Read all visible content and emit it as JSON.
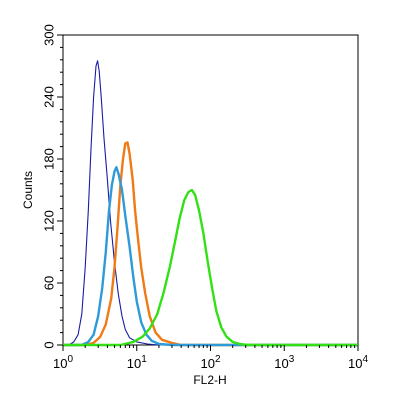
{
  "chart_data": {
    "type": "line",
    "x_scale": "log",
    "xlim": [
      1,
      10000
    ],
    "ylim": [
      0,
      300
    ],
    "xlabel": "FL2-H",
    "ylabel": "Counts",
    "y_ticks": [
      0,
      60,
      120,
      180,
      240,
      300
    ],
    "x_ticks": [
      {
        "base": "10",
        "exp": "0"
      },
      {
        "base": "10",
        "exp": "1"
      },
      {
        "base": "10",
        "exp": "2"
      },
      {
        "base": "10",
        "exp": "3"
      },
      {
        "base": "10",
        "exp": "4"
      }
    ],
    "grid": false,
    "series": [
      {
        "color": "#1a1aa6",
        "stroke": 1.1,
        "points": [
          [
            1.0,
            0
          ],
          [
            1.2,
            0
          ],
          [
            1.4,
            3
          ],
          [
            1.6,
            10
          ],
          [
            1.8,
            30
          ],
          [
            2.0,
            75
          ],
          [
            2.2,
            130
          ],
          [
            2.4,
            190
          ],
          [
            2.6,
            240
          ],
          [
            2.8,
            270
          ],
          [
            2.95,
            275
          ],
          [
            3.1,
            265
          ],
          [
            3.3,
            240
          ],
          [
            3.6,
            200
          ],
          [
            4.0,
            160
          ],
          [
            4.4,
            120
          ],
          [
            5.0,
            80
          ],
          [
            5.6,
            50
          ],
          [
            6.3,
            28
          ],
          [
            7.0,
            15
          ],
          [
            8.0,
            7
          ],
          [
            10,
            3
          ],
          [
            14,
            1
          ],
          [
            20,
            0
          ],
          [
            10000,
            0
          ]
        ]
      },
      {
        "color": "#ef7a16",
        "stroke": 2.4,
        "points": [
          [
            1.0,
            0
          ],
          [
            2.0,
            0
          ],
          [
            2.6,
            2
          ],
          [
            3.2,
            8
          ],
          [
            3.8,
            20
          ],
          [
            4.5,
            45
          ],
          [
            5.0,
            75
          ],
          [
            5.5,
            115
          ],
          [
            6.0,
            155
          ],
          [
            6.5,
            180
          ],
          [
            7.0,
            195
          ],
          [
            7.5,
            196
          ],
          [
            8.0,
            185
          ],
          [
            8.8,
            160
          ],
          [
            9.5,
            130
          ],
          [
            10.5,
            100
          ],
          [
            11.5,
            75
          ],
          [
            13,
            50
          ],
          [
            15,
            28
          ],
          [
            18,
            12
          ],
          [
            22,
            5
          ],
          [
            30,
            2
          ],
          [
            40,
            0
          ],
          [
            10000,
            0
          ]
        ]
      },
      {
        "color": "#2e9bd8",
        "stroke": 2.4,
        "points": [
          [
            1.0,
            0
          ],
          [
            1.8,
            0
          ],
          [
            2.2,
            3
          ],
          [
            2.6,
            10
          ],
          [
            3.0,
            28
          ],
          [
            3.4,
            55
          ],
          [
            3.8,
            90
          ],
          [
            4.2,
            130
          ],
          [
            4.6,
            155
          ],
          [
            5.0,
            168
          ],
          [
            5.3,
            172
          ],
          [
            5.7,
            165
          ],
          [
            6.3,
            150
          ],
          [
            7.0,
            125
          ],
          [
            8.0,
            95
          ],
          [
            9.0,
            65
          ],
          [
            10,
            42
          ],
          [
            11.5,
            22
          ],
          [
            13.5,
            10
          ],
          [
            16,
            4
          ],
          [
            20,
            1
          ],
          [
            30,
            0
          ],
          [
            10000,
            0
          ]
        ]
      },
      {
        "color": "#33e016",
        "stroke": 2.4,
        "points": [
          [
            1.0,
            0
          ],
          [
            6.0,
            0
          ],
          [
            9.0,
            3
          ],
          [
            12,
            8
          ],
          [
            15,
            16
          ],
          [
            19,
            30
          ],
          [
            23,
            50
          ],
          [
            28,
            75
          ],
          [
            33,
            100
          ],
          [
            38,
            122
          ],
          [
            44,
            140
          ],
          [
            50,
            148
          ],
          [
            56,
            150
          ],
          [
            62,
            145
          ],
          [
            70,
            130
          ],
          [
            80,
            108
          ],
          [
            92,
            80
          ],
          [
            105,
            55
          ],
          [
            120,
            33
          ],
          [
            140,
            17
          ],
          [
            165,
            8
          ],
          [
            200,
            3
          ],
          [
            250,
            1
          ],
          [
            320,
            0
          ],
          [
            10000,
            0
          ]
        ]
      }
    ]
  }
}
